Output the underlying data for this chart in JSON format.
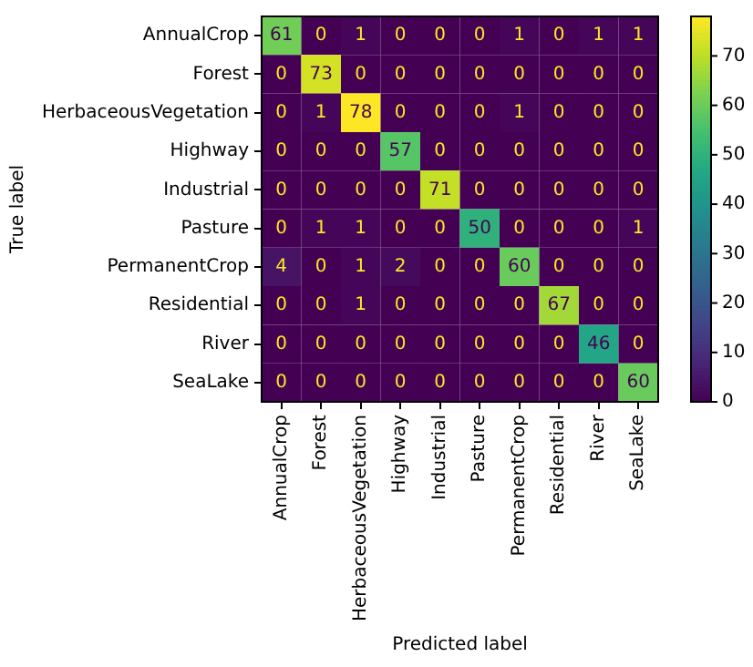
{
  "chart_data": {
    "type": "heatmap",
    "xlabel": "Predicted label",
    "ylabel": "True label",
    "categories": [
      "AnnualCrop",
      "Forest",
      "HerbaceousVegetation",
      "Highway",
      "Industrial",
      "Pasture",
      "PermanentCrop",
      "Residential",
      "River",
      "SeaLake"
    ],
    "y_categories": [
      "AnnualCrop",
      "Forest",
      "HerbaceousVegetation",
      "Highway",
      "Industrial",
      "Pasture",
      "PermanentCrop",
      "Residential",
      "River",
      "SeaLake"
    ],
    "cells": [
      [
        61,
        0,
        1,
        0,
        0,
        0,
        1,
        0,
        1,
        1
      ],
      [
        0,
        73,
        0,
        0,
        0,
        0,
        0,
        0,
        0,
        0
      ],
      [
        0,
        1,
        78,
        0,
        0,
        0,
        1,
        0,
        0,
        0
      ],
      [
        0,
        0,
        0,
        57,
        0,
        0,
        0,
        0,
        0,
        0
      ],
      [
        0,
        0,
        0,
        0,
        71,
        0,
        0,
        0,
        0,
        0
      ],
      [
        0,
        1,
        1,
        0,
        0,
        50,
        0,
        0,
        0,
        1
      ],
      [
        4,
        0,
        1,
        2,
        0,
        0,
        60,
        0,
        0,
        0
      ],
      [
        0,
        0,
        1,
        0,
        0,
        0,
        0,
        67,
        0,
        0
      ],
      [
        0,
        0,
        0,
        0,
        0,
        0,
        0,
        0,
        46,
        0
      ],
      [
        0,
        0,
        0,
        0,
        0,
        0,
        0,
        0,
        0,
        60
      ]
    ],
    "clim": [
      0,
      78
    ],
    "cticks": [
      0,
      10,
      20,
      30,
      40,
      50,
      60,
      70
    ],
    "data_labels": true
  }
}
